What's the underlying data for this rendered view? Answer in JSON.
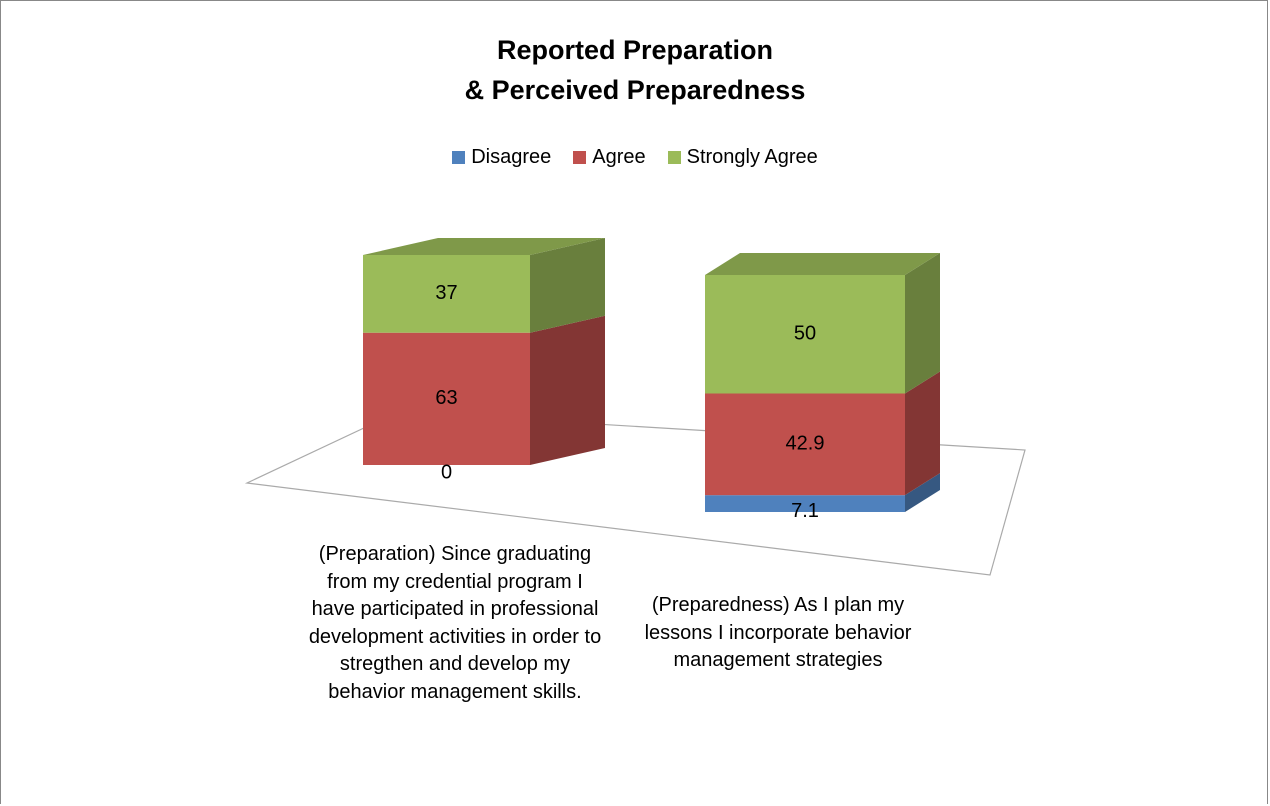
{
  "chart_data": {
    "type": "bar3d_stacked",
    "title": "Reported Preparation\n& Perceived Preparedness",
    "categories": [
      "(Preparation) Since graduating\nfrom my credential program I\nhave participated in professional\ndevelopment activities in order to\nstregthen and develop my\nbehavior management skills.",
      "(Preparedness) As I plan my\nlessons I incorporate behavior\nmanagement strategies"
    ],
    "series": [
      {
        "name": "Disagree",
        "color": "#4f81bd",
        "values": [
          0,
          7.1
        ]
      },
      {
        "name": "Agree",
        "color": "#c0504d",
        "values": [
          63,
          42.9
        ]
      },
      {
        "name": "Strongly Agree",
        "color": "#9bbb59",
        "values": [
          37,
          50
        ]
      }
    ],
    "legend": "top"
  }
}
